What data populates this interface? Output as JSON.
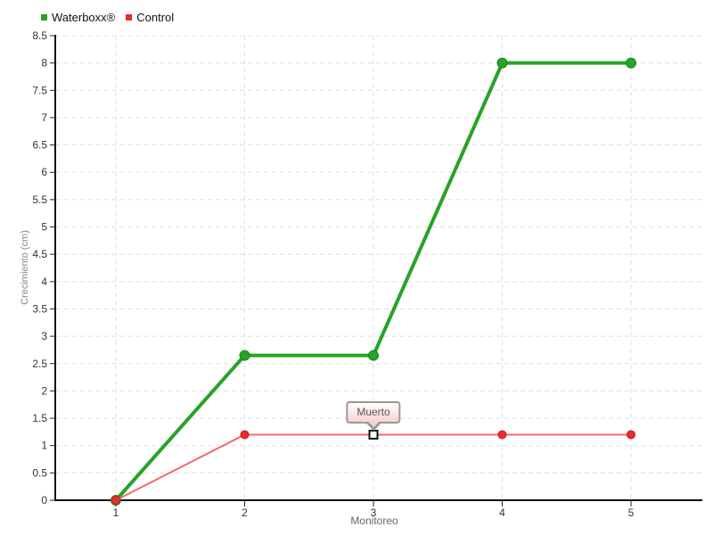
{
  "legend": {
    "items": [
      {
        "label": "Waterboxx®",
        "color": "#27a327"
      },
      {
        "label": "Control",
        "color": "#e92c2c"
      }
    ]
  },
  "tooltip": {
    "text": "Muerto"
  },
  "chart_data": {
    "type": "line",
    "title": "",
    "xlabel": "Monitoreo",
    "ylabel": "Crecimiento (cm)",
    "x": [
      1,
      2,
      3,
      4,
      5
    ],
    "xtick_labels": [
      "1",
      "2",
      "3",
      "4",
      "5"
    ],
    "ytick_labels": [
      "0",
      "0.5",
      "1",
      "1.5",
      "2",
      "2.5",
      "3",
      "3.5",
      "4",
      "4.5",
      "5",
      "5.5",
      "6",
      "6.5",
      "7",
      "7.5",
      "8",
      "8.5"
    ],
    "ylim": [
      0,
      8.5
    ],
    "grid": true,
    "grid_style": "dashed",
    "legend_position": "top-left",
    "series": [
      {
        "name": "Waterboxx®",
        "values": [
          0,
          2.65,
          2.65,
          8,
          8
        ],
        "color": "#27a327",
        "marker_stroke": "#1b861b",
        "line_width": 4,
        "marker": "circle",
        "marker_radius": 5.5
      },
      {
        "name": "Control",
        "values": [
          0,
          1.2,
          1.2,
          1.2,
          1.2
        ],
        "color": "#e92c2c",
        "line_color": "#f36a6a",
        "marker_stroke": "#c51f1f",
        "line_width": 2,
        "marker": "circle",
        "marker_radius": 4.5
      }
    ],
    "annotation": {
      "series": "Control",
      "point_index": 2,
      "x": 3,
      "y": 1.2,
      "label": "Muerto",
      "marker": "square"
    }
  }
}
